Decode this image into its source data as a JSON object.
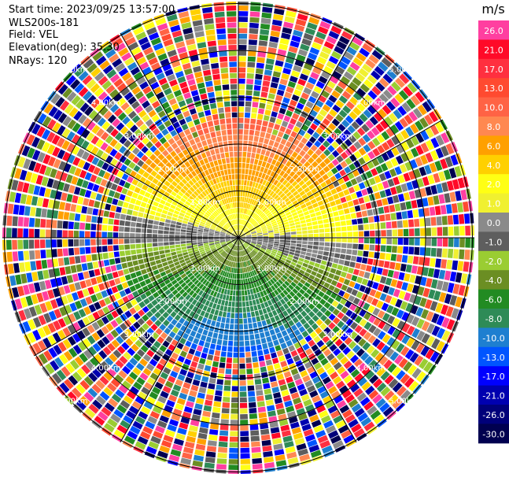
{
  "info": {
    "start_time": "Start time: 2023/09/25 13:57:00",
    "instrument": "WLS200s-181",
    "field": "Field: VEL",
    "elevation": "Elevation(deg): 35.30",
    "nrays": "NRays: 120"
  },
  "chart_data": {
    "type": "heatmap",
    "projection": "polar (PPI scan)",
    "range_rings_km": [
      1,
      2,
      3,
      4,
      5
    ],
    "ring_labels": [
      "1.00km",
      "2.00km",
      "3.00km",
      "4.00km",
      "5.00km"
    ],
    "n_rays": 120,
    "colorbar": {
      "unit": "m/s",
      "ticks": [
        "26.0",
        "21.0",
        "17.0",
        "13.0",
        "10.0",
        "8.0",
        "6.0",
        "4.0",
        "2.0",
        "1.0",
        "0.0",
        "-1.0",
        "-2.0",
        "-4.0",
        "-6.0",
        "-8.0",
        "-10.0",
        "-13.0",
        "-17.0",
        "-21.0",
        "-26.0",
        "-30.0"
      ],
      "colors": [
        "#ff3fa0",
        "#ff0a28",
        "#ff2f3f",
        "#ff4a30",
        "#ff6345",
        "#ff8850",
        "#ffa000",
        "#ffd000",
        "#ffff14",
        "#f0f030",
        "#8a8a8a",
        "#5e5e5e",
        "#9acd32",
        "#6b8e23",
        "#228b22",
        "#2e8b57",
        "#1e7fd0",
        "#0055ff",
        "#0000ff",
        "#0000b0",
        "#00007a",
        "#000050"
      ]
    },
    "pattern": {
      "positive_near_north": "red to yellow (+1 to +10 m/s) within ~2.4 km",
      "negative_near_south": "green to blue (-2 to -10 m/s) within ~2.4 km",
      "zero_band": "grey band across center",
      "outer_ranges": "noisy random colors beyond ~2.5 km"
    }
  }
}
